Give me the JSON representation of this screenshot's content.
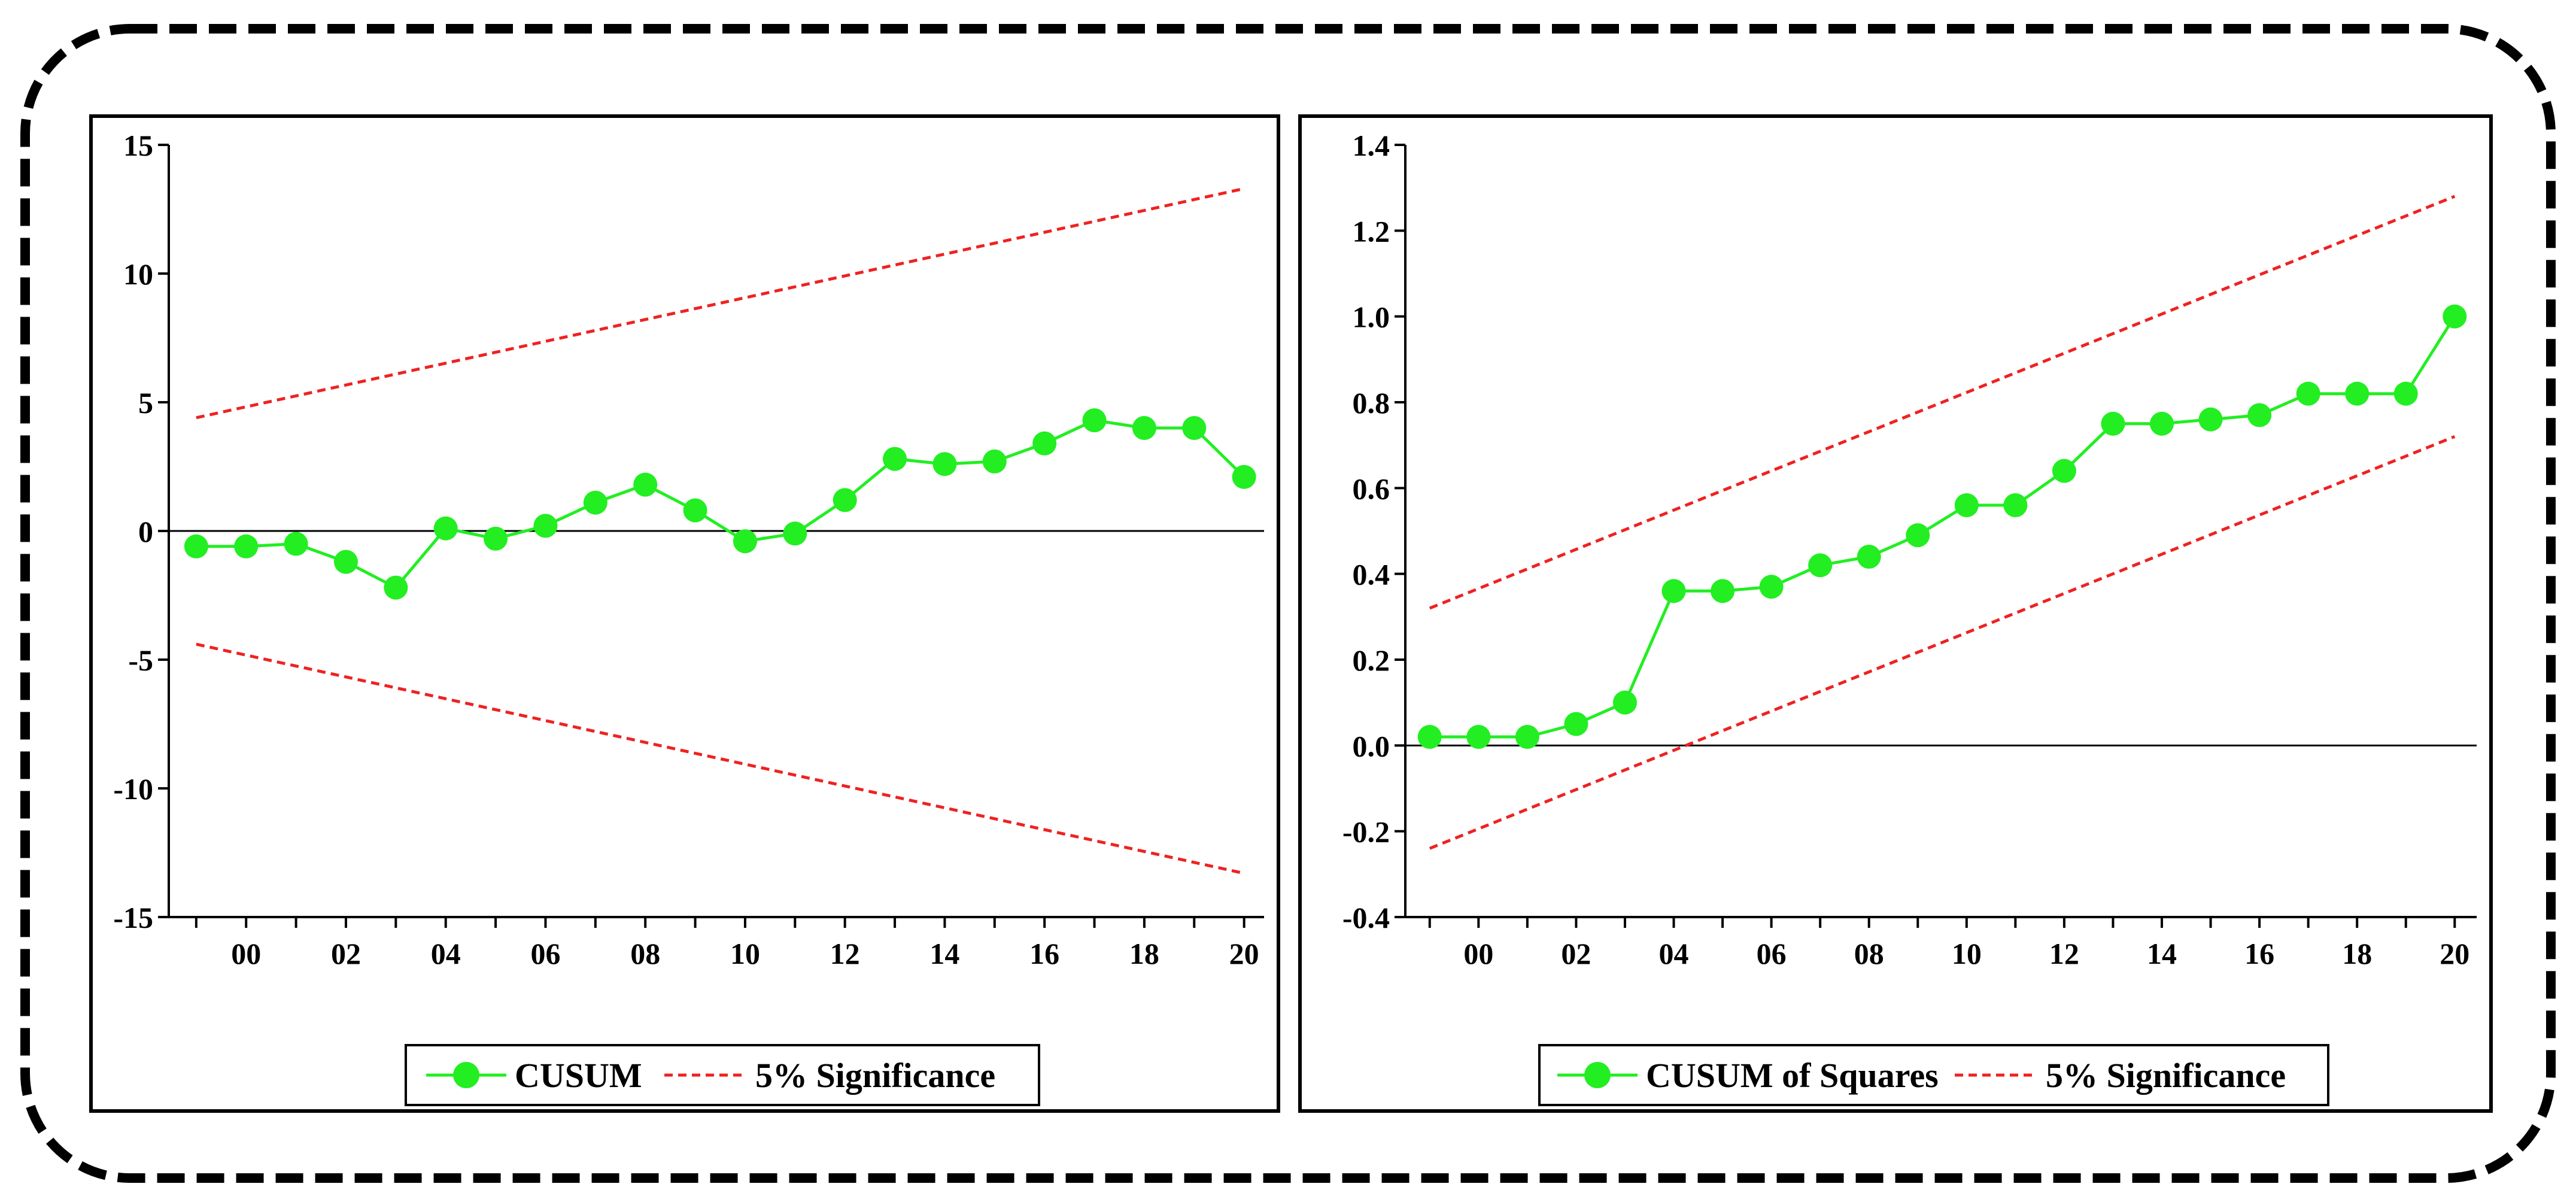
{
  "chart_data": [
    {
      "type": "line",
      "name": "cusum",
      "x_tick_labels": [
        "00",
        "02",
        "04",
        "06",
        "08",
        "10",
        "12",
        "14",
        "16",
        "18",
        "20"
      ],
      "x_tick_values": [
        2000,
        2002,
        2004,
        2006,
        2008,
        2010,
        2012,
        2014,
        2016,
        2018,
        2020
      ],
      "xlim": [
        1998.45,
        2020.4
      ],
      "ylim": [
        -15,
        15
      ],
      "y_tick_values": [
        15,
        10,
        5,
        0,
        -5,
        -10,
        -15
      ],
      "y_tick_labels": [
        "15",
        "10",
        "5",
        "0",
        "-5",
        "-10",
        "-15"
      ],
      "zero_line": 0,
      "series": [
        {
          "name": "CUSUM",
          "color": "#22ee22",
          "style": "solid-marker",
          "x": [
            1999,
            2000,
            2001,
            2002,
            2003,
            2004,
            2005,
            2006,
            2007,
            2008,
            2009,
            2010,
            2011,
            2012,
            2013,
            2014,
            2015,
            2016,
            2017,
            2018,
            2019,
            2020
          ],
          "y": [
            -0.6,
            -0.6,
            -0.5,
            -1.2,
            -2.2,
            0.1,
            -0.3,
            0.2,
            1.1,
            1.8,
            0.8,
            -0.4,
            -0.1,
            1.2,
            2.8,
            2.6,
            2.7,
            3.4,
            4.3,
            4.0,
            4.0,
            2.1
          ]
        },
        {
          "name": "5% Significance",
          "color": "#ee2222",
          "style": "dashed",
          "x": [
            1999,
            2020
          ],
          "y": [
            4.4,
            13.3
          ]
        },
        {
          "name": "5% Significance lower",
          "color": "#ee2222",
          "style": "dashed",
          "x": [
            1999,
            2020
          ],
          "y": [
            -4.4,
            -13.3
          ]
        }
      ],
      "legend": [
        {
          "label": "CUSUM",
          "style": "solid-marker",
          "color": "#22ee22"
        },
        {
          "label": "5% Significance",
          "style": "dashed",
          "color": "#ee2222"
        }
      ],
      "legend_position": "bottom-center"
    },
    {
      "type": "line",
      "name": "cusumsq",
      "x_tick_labels": [
        "00",
        "02",
        "04",
        "06",
        "08",
        "10",
        "12",
        "14",
        "16",
        "18",
        "20"
      ],
      "x_tick_values": [
        2000,
        2002,
        2004,
        2006,
        2008,
        2010,
        2012,
        2014,
        2016,
        2018,
        2020
      ],
      "xlim": [
        1998.5,
        2020.45
      ],
      "ylim": [
        -0.4,
        1.4
      ],
      "y_tick_values": [
        1.4,
        1.2,
        1.0,
        0.8,
        0.6,
        0.4,
        0.2,
        0.0,
        -0.2,
        -0.4
      ],
      "y_tick_labels": [
        "1.4",
        "1.2",
        "1.0",
        "0.8",
        "0.6",
        "0.4",
        "0.2",
        "0.0",
        "-0.2",
        "-0.4"
      ],
      "zero_line": 0,
      "series": [
        {
          "name": "CUSUM of Squares",
          "color": "#22ee22",
          "style": "solid-marker",
          "x": [
            1999,
            2000,
            2001,
            2002,
            2003,
            2004,
            2005,
            2006,
            2007,
            2008,
            2009,
            2010,
            2011,
            2012,
            2013,
            2014,
            2015,
            2016,
            2017,
            2018,
            2019,
            2020
          ],
          "y": [
            0.02,
            0.02,
            0.02,
            0.05,
            0.1,
            0.36,
            0.36,
            0.37,
            0.42,
            0.44,
            0.49,
            0.56,
            0.56,
            0.64,
            0.75,
            0.75,
            0.76,
            0.77,
            0.82,
            0.82,
            0.82,
            1.0
          ]
        },
        {
          "name": "5% Significance",
          "color": "#ee2222",
          "style": "dashed",
          "x": [
            1999,
            2020
          ],
          "y": [
            0.32,
            1.28
          ]
        },
        {
          "name": "5% Significance lower",
          "color": "#ee2222",
          "style": "dashed",
          "x": [
            1999,
            2020
          ],
          "y": [
            -0.24,
            0.72
          ]
        }
      ],
      "legend": [
        {
          "label": "CUSUM of Squares",
          "style": "solid-marker",
          "color": "#22ee22"
        },
        {
          "label": "5% Significance",
          "style": "dashed",
          "color": "#ee2222"
        }
      ],
      "legend_position": "bottom-center"
    }
  ]
}
